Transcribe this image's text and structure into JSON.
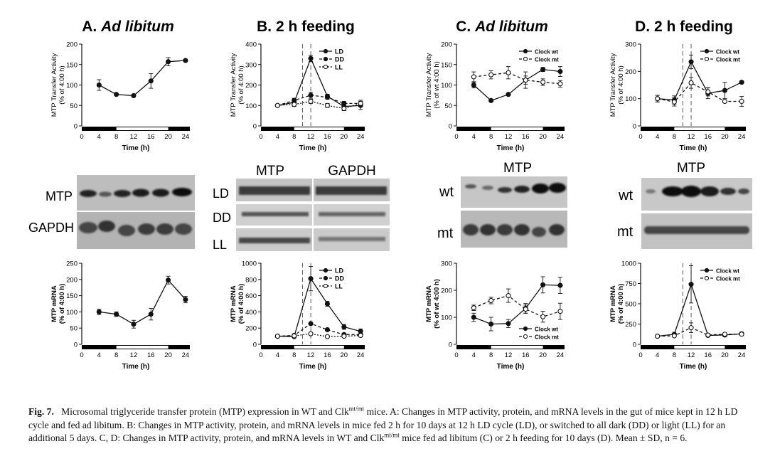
{
  "panels": [
    {
      "letter": "A.",
      "title": "Ad libitum",
      "italic": true
    },
    {
      "letter": "B.",
      "title": "2 h feeding",
      "italic": false
    },
    {
      "letter": "C.",
      "title": "Ad libitum",
      "italic": true
    },
    {
      "letter": "D.",
      "title": "2 h feeding",
      "italic": false
    }
  ],
  "blot_labels": {
    "a_rows": [
      "MTP",
      "GAPDH"
    ],
    "b_columns": [
      "MTP",
      "GAPDH"
    ],
    "b_rows": [
      "LD",
      "DD",
      "LL"
    ],
    "c_header": "MTP",
    "c_rows": [
      "wt",
      "mt"
    ],
    "d_header": "MTP",
    "d_rows": [
      "wt",
      "mt"
    ]
  },
  "chart_data": [
    {
      "id": "A-activity",
      "type": "line",
      "ylabel": [
        "MTP Transfer Activity",
        "(% of 4:00 h)"
      ],
      "xlabel": "Time (h)",
      "ylim": [
        0,
        200
      ],
      "yticks": [
        0,
        50,
        100,
        150,
        200
      ],
      "xlim": [
        0,
        25
      ],
      "xticks": [
        0,
        4,
        8,
        12,
        16,
        20,
        24
      ],
      "light_bar": [
        8,
        20
      ],
      "vlines": [],
      "legend": null,
      "series": [
        {
          "name": "",
          "style": "solid",
          "marker": "filled",
          "x": [
            4,
            8,
            12,
            16,
            20,
            24
          ],
          "values": [
            100,
            77,
            74,
            110,
            157,
            160
          ],
          "err": [
            13,
            0,
            0,
            18,
            10,
            3
          ]
        }
      ]
    },
    {
      "id": "B-activity",
      "type": "line",
      "ylabel": [
        "MTP Transfer Activity",
        "(% of 4:00 h)"
      ],
      "xlabel": "Time (h)",
      "ylim": [
        0,
        400
      ],
      "yticks": [
        0,
        100,
        200,
        300,
        400
      ],
      "xlim": [
        0,
        25
      ],
      "xticks": [
        0,
        4,
        8,
        12,
        16,
        20,
        24
      ],
      "light_bar": [
        8,
        20
      ],
      "vlines": [
        10,
        12
      ],
      "legend": "top-right",
      "series": [
        {
          "name": "LD",
          "style": "solid",
          "marker": "filled",
          "x": [
            4,
            8,
            12,
            16,
            20,
            24
          ],
          "values": [
            100,
            115,
            330,
            145,
            95,
            100
          ],
          "err": [
            0,
            10,
            15,
            10,
            20,
            20
          ]
        },
        {
          "name": "DD",
          "style": "dashed",
          "marker": "filled",
          "x": [
            4,
            8,
            12,
            16,
            20,
            24
          ],
          "values": [
            100,
            125,
            150,
            140,
            110,
            110
          ],
          "err": [
            0,
            10,
            15,
            10,
            10,
            15
          ]
        },
        {
          "name": "LL",
          "style": "dotted",
          "marker": "open",
          "x": [
            4,
            8,
            12,
            16,
            20,
            24
          ],
          "values": [
            100,
            105,
            120,
            100,
            85,
            110
          ],
          "err": [
            0,
            10,
            10,
            10,
            10,
            15
          ]
        }
      ]
    },
    {
      "id": "C-activity",
      "type": "line",
      "ylabel": [
        "MTP Transfer Activity",
        "(% of wt 4:00 h)"
      ],
      "xlabel": "Time (h)",
      "ylim": [
        0,
        200
      ],
      "yticks": [
        0,
        50,
        100,
        150,
        200
      ],
      "xlim": [
        0,
        25
      ],
      "xticks": [
        0,
        4,
        8,
        12,
        16,
        20,
        24
      ],
      "light_bar": [
        8,
        20
      ],
      "vlines": [],
      "legend": "top-right",
      "series": [
        {
          "name": "Clock wt",
          "style": "solid",
          "marker": "filled",
          "x": [
            4,
            8,
            12,
            16,
            20,
            24
          ],
          "values": [
            100,
            62,
            77,
            112,
            138,
            133
          ],
          "err": [
            7,
            3,
            3,
            20,
            5,
            12
          ]
        },
        {
          "name": "Clock mt",
          "style": "dashed",
          "marker": "open",
          "x": [
            4,
            8,
            12,
            16,
            20,
            24
          ],
          "values": [
            120,
            125,
            130,
            112,
            107,
            103
          ],
          "err": [
            12,
            10,
            15,
            10,
            8,
            8
          ]
        }
      ]
    },
    {
      "id": "D-activity",
      "type": "line",
      "ylabel": [
        "MTP Transfer Activity",
        "(% of 4:00 h)"
      ],
      "xlabel": "Time (h)",
      "ylim": [
        0,
        300
      ],
      "yticks": [
        0,
        100,
        200,
        300
      ],
      "xlim": [
        0,
        25
      ],
      "xticks": [
        0,
        4,
        8,
        12,
        16,
        20,
        24
      ],
      "light_bar": [
        8,
        20
      ],
      "vlines": [
        10,
        12
      ],
      "legend": "top-right",
      "series": [
        {
          "name": "Clock wt",
          "style": "solid",
          "marker": "filled",
          "x": [
            4,
            8,
            12,
            16,
            20,
            24
          ],
          "values": [
            100,
            95,
            235,
            120,
            130,
            160
          ],
          "err": [
            12,
            15,
            25,
            20,
            30,
            5
          ]
        },
        {
          "name": "Clock mt",
          "style": "dashed",
          "marker": "open",
          "x": [
            4,
            8,
            12,
            16,
            20,
            24
          ],
          "values": [
            100,
            88,
            158,
            125,
            90,
            90
          ],
          "err": [
            12,
            15,
            20,
            15,
            5,
            18
          ]
        }
      ]
    },
    {
      "id": "A-mrna",
      "type": "line",
      "ylabel": [
        "MTP mRNA",
        "(% of 4:00 h)"
      ],
      "xlabel": "Time (h)",
      "ylim": [
        0,
        250
      ],
      "yticks": [
        0,
        50,
        100,
        150,
        200,
        250
      ],
      "xlim": [
        0,
        25
      ],
      "xticks": [
        0,
        4,
        8,
        12,
        16,
        20,
        24
      ],
      "light_bar": [
        8,
        20
      ],
      "vlines": [],
      "legend": null,
      "series": [
        {
          "name": "",
          "style": "solid",
          "marker": "filled",
          "x": [
            4,
            8,
            12,
            16,
            20,
            24
          ],
          "values": [
            100,
            93,
            62,
            93,
            198,
            138
          ],
          "err": [
            8,
            7,
            12,
            18,
            12,
            10
          ]
        }
      ]
    },
    {
      "id": "B-mrna",
      "type": "line",
      "ylabel": [
        "MTP mRNA",
        "(% of 4:00 h)"
      ],
      "xlabel": "Time (h)",
      "ylim": [
        0,
        1000
      ],
      "yticks": [
        0,
        200,
        400,
        600,
        800,
        1000
      ],
      "xlim": [
        0,
        25
      ],
      "xticks": [
        0,
        4,
        8,
        12,
        16,
        20,
        24
      ],
      "light_bar": [
        8,
        20
      ],
      "vlines": [
        10,
        12
      ],
      "legend": "top-right",
      "series": [
        {
          "name": "LD",
          "style": "solid",
          "marker": "filled",
          "x": [
            4,
            8,
            12,
            16,
            20,
            24
          ],
          "values": [
            100,
            95,
            810,
            500,
            215,
            160
          ],
          "err": [
            10,
            10,
            150,
            30,
            30,
            30
          ]
        },
        {
          "name": "DD",
          "style": "dashed",
          "marker": "filled",
          "x": [
            4,
            8,
            12,
            16,
            20,
            24
          ],
          "values": [
            100,
            110,
            255,
            180,
            120,
            120
          ],
          "err": [
            10,
            10,
            15,
            10,
            10,
            10
          ]
        },
        {
          "name": "LL",
          "style": "dotted",
          "marker": "open",
          "x": [
            4,
            8,
            12,
            16,
            20,
            24
          ],
          "values": [
            100,
            105,
            130,
            95,
            100,
            110
          ],
          "err": [
            10,
            10,
            10,
            10,
            10,
            10
          ]
        }
      ]
    },
    {
      "id": "C-mrna",
      "type": "line",
      "ylabel": [
        "MTP mRNA",
        "(% of wt 4:00 h)"
      ],
      "xlabel": "Time (h)",
      "ylim": [
        0,
        300
      ],
      "yticks": [
        0,
        100,
        200,
        300
      ],
      "xlim": [
        0,
        25
      ],
      "xticks": [
        0,
        4,
        8,
        12,
        16,
        20,
        24
      ],
      "light_bar": [
        8,
        20
      ],
      "vlines": [],
      "legend": "bottom-right",
      "series": [
        {
          "name": "Clock wt",
          "style": "solid",
          "marker": "filled",
          "x": [
            4,
            8,
            12,
            16,
            20,
            24
          ],
          "values": [
            100,
            75,
            77,
            133,
            220,
            218
          ],
          "err": [
            15,
            25,
            15,
            18,
            30,
            30
          ]
        },
        {
          "name": "Clock mt",
          "style": "dashed",
          "marker": "open",
          "x": [
            4,
            8,
            12,
            16,
            20,
            24
          ],
          "values": [
            135,
            162,
            180,
            130,
            102,
            122
          ],
          "err": [
            10,
            12,
            25,
            15,
            20,
            30
          ]
        }
      ]
    },
    {
      "id": "D-mrna",
      "type": "line",
      "ylabel": [
        "MTP mRNA",
        "(% of 4:00 h)"
      ],
      "xlabel": "Time (h)",
      "ylim": [
        0,
        1000
      ],
      "yticks": [
        0,
        250,
        500,
        750,
        1000
      ],
      "xlim": [
        0,
        25
      ],
      "xticks": [
        0,
        4,
        8,
        12,
        16,
        20,
        24
      ],
      "light_bar": [
        8,
        20
      ],
      "vlines": [
        10,
        12
      ],
      "legend": "top-right",
      "series": [
        {
          "name": "Clock wt",
          "style": "solid",
          "marker": "filled",
          "x": [
            4,
            8,
            12,
            16,
            20,
            24
          ],
          "values": [
            100,
            125,
            740,
            110,
            115,
            130
          ],
          "err": [
            10,
            10,
            230,
            10,
            20,
            20
          ]
        },
        {
          "name": "Clock mt",
          "style": "dashed",
          "marker": "open",
          "x": [
            4,
            8,
            12,
            16,
            20,
            24
          ],
          "values": [
            100,
            105,
            205,
            115,
            125,
            125
          ],
          "err": [
            10,
            10,
            60,
            10,
            15,
            15
          ]
        }
      ]
    }
  ],
  "caption": {
    "label": "Fig. 7.",
    "pre": "Microsomal triglyceride transfer protein (MTP) expression in WT and Clk",
    "sup": "mt/mt",
    "mid": " mice. A: Changes in MTP activity, protein, and mRNA levels in the gut of mice kept in 12 h LD cycle and fed ad libitum. B: Changes in MTP activity, protein, and mRNA levels in mice fed 2 h for 10 days at 12 h LD cycle (LD), or switched to all dark (DD) or light (LL) for an additional 5 days. C, D: Changes in MTP activity, protein, and mRNA levels in WT and Clk",
    "sup2": "mt/mt",
    "post": " mice fed ad libitum (C) or 2 h feeding for 10 days (D). Mean ± SD, n = 6."
  }
}
